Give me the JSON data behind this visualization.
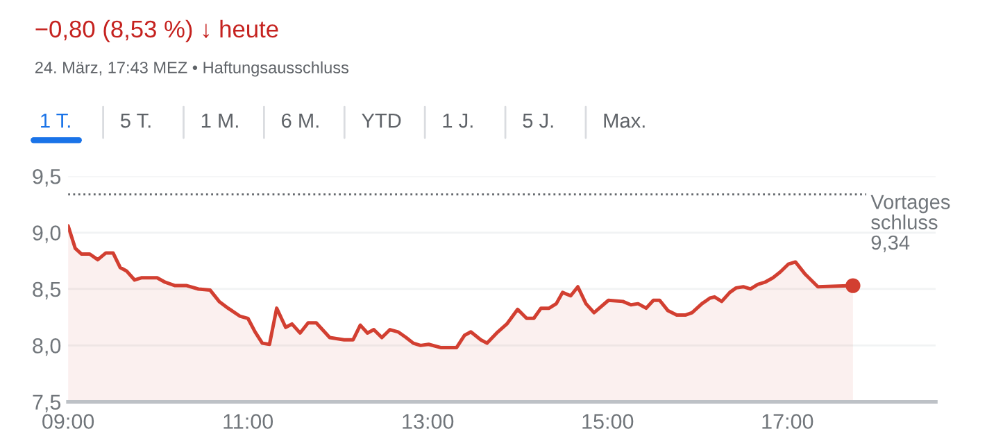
{
  "chart_data": {
    "type": "area",
    "subtitle": "−0,80 (8,53 %) ↓ heute",
    "annotations": [
      "24. März, 17:43 MEZ • Haftungsausschluss",
      "1 T.",
      "5 T.",
      "1 M.",
      "6 M.",
      "YTD",
      "1 J.",
      "5 J.",
      "Max."
    ],
    "series": [
      {
        "color": "#d23f31",
        "x": [
          9.0,
          9.08,
          9.15,
          9.24,
          9.33,
          9.42,
          9.5,
          9.58,
          9.65,
          9.74,
          9.82,
          9.99,
          10.08,
          10.19,
          10.32,
          10.45,
          10.58,
          10.68,
          10.78,
          10.91,
          11.0,
          11.08,
          11.16,
          11.24,
          11.32,
          11.42,
          11.49,
          11.58,
          11.67,
          11.76,
          11.91,
          12.07,
          12.17,
          12.25,
          12.33,
          12.4,
          12.49,
          12.58,
          12.67,
          12.76,
          12.84,
          12.92,
          13.01,
          13.15,
          13.32,
          13.41,
          13.48,
          13.59,
          13.66,
          13.78,
          13.88,
          14.0,
          14.1,
          14.18,
          14.26,
          14.35,
          14.43,
          14.5,
          14.59,
          14.67,
          14.76,
          14.85,
          15.01,
          15.17,
          15.26,
          15.34,
          15.43,
          15.51,
          15.58,
          15.67,
          15.77,
          15.87,
          15.94,
          16.05,
          16.14,
          16.19,
          16.27,
          16.36,
          16.43,
          16.51,
          16.59,
          16.67,
          16.75,
          16.84,
          16.92,
          17.01,
          17.09,
          17.2,
          17.34,
          17.73
        ],
        "values": [
          9.06,
          8.86,
          8.81,
          8.81,
          8.76,
          8.82,
          8.82,
          8.69,
          8.66,
          8.58,
          8.6,
          8.6,
          8.56,
          8.53,
          8.53,
          8.5,
          8.49,
          8.39,
          8.33,
          8.26,
          8.24,
          8.12,
          8.02,
          8.01,
          8.33,
          8.16,
          8.19,
          8.11,
          8.2,
          8.2,
          8.07,
          8.05,
          8.05,
          8.18,
          8.11,
          8.14,
          8.07,
          8.14,
          8.12,
          8.07,
          8.02,
          8.0,
          8.01,
          7.98,
          7.98,
          8.09,
          8.12,
          8.05,
          8.02,
          8.12,
          8.19,
          8.32,
          8.24,
          8.24,
          8.33,
          8.33,
          8.37,
          8.47,
          8.44,
          8.52,
          8.37,
          8.29,
          8.4,
          8.39,
          8.36,
          8.37,
          8.33,
          8.4,
          8.4,
          8.31,
          8.27,
          8.27,
          8.29,
          8.37,
          8.42,
          8.43,
          8.39,
          8.47,
          8.51,
          8.52,
          8.5,
          8.54,
          8.56,
          8.6,
          8.65,
          8.72,
          8.74,
          8.63,
          8.52,
          8.53
        ]
      },
      {
        "type": "scatter",
        "color": "#d23f31",
        "marker": "circle",
        "x": [
          17.73
        ],
        "values": [
          8.53
        ]
      }
    ],
    "xlim": [
      9,
      18.65
    ],
    "ylim": [
      7.5,
      9.5
    ],
    "xticks": [
      {
        "value": 9,
        "label": "09:00"
      },
      {
        "value": 11,
        "label": "11:00"
      },
      {
        "value": 13,
        "label": "13:00"
      },
      {
        "value": 15,
        "label": "15:00"
      },
      {
        "value": 17,
        "label": "17:00"
      }
    ],
    "yticks": [
      {
        "value": 7.5,
        "label": "7,5"
      },
      {
        "value": 8.0,
        "label": "8,0"
      },
      {
        "value": 8.5,
        "label": "8,5"
      },
      {
        "value": 9.0,
        "label": "9,0"
      },
      {
        "value": 9.5,
        "label": "9,5"
      }
    ],
    "grid": "y",
    "ref_lines": [
      {
        "axis": "y",
        "value": 9.34,
        "label": "Vortages\nschluss\n9,34",
        "color": "#5f6368",
        "line_style": "dotted"
      }
    ]
  }
}
